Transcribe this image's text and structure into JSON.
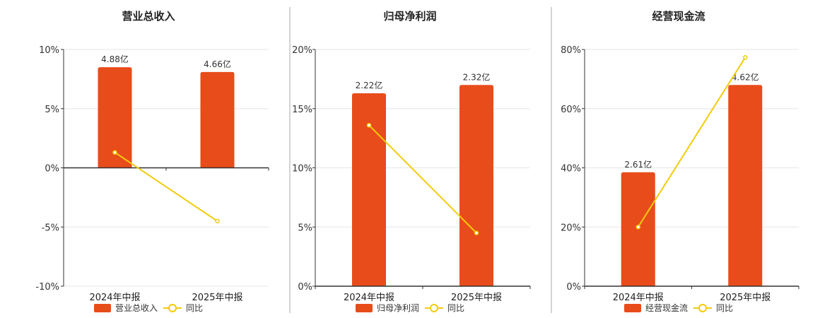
{
  "colors": {
    "bar": "#e84c1a",
    "line": "#f2cc0c",
    "grid": "#e6e6e6",
    "axis": "#333333",
    "divider": "#aaaaaa"
  },
  "chart_data": [
    {
      "type": "bar",
      "title": "营业总收入",
      "categories": [
        "2024年中报",
        "2025年中报"
      ],
      "series": [
        {
          "name": "营业总收入",
          "type": "bar",
          "values": [
            4.88,
            4.66
          ],
          "labels": [
            "4.88亿",
            "4.66亿"
          ]
        },
        {
          "name": "同比",
          "type": "line",
          "values": [
            1.3,
            -4.5
          ]
        }
      ],
      "ylim": [
        -10,
        10
      ],
      "yticks": [
        -10,
        -5,
        0,
        5,
        10
      ],
      "ytick_labels": [
        "-10%",
        "-5%",
        "0%",
        "5%",
        "10%"
      ],
      "bar_yoy_equiv": [
        8.5,
        8.1
      ],
      "grid": true,
      "legend": "bottom"
    },
    {
      "type": "bar",
      "title": "归母净利润",
      "categories": [
        "2024年中报",
        "2025年中报"
      ],
      "series": [
        {
          "name": "归母净利润",
          "type": "bar",
          "values": [
            2.22,
            2.32
          ],
          "labels": [
            "2.22亿",
            "2.32亿"
          ]
        },
        {
          "name": "同比",
          "type": "line",
          "values": [
            13.6,
            4.5
          ]
        }
      ],
      "ylim": [
        0,
        20
      ],
      "yticks": [
        0,
        5,
        10,
        15,
        20
      ],
      "ytick_labels": [
        "0%",
        "5%",
        "10%",
        "15%",
        "20%"
      ],
      "bar_yoy_equiv": [
        16.3,
        17.0
      ],
      "grid": true,
      "legend": "bottom"
    },
    {
      "type": "bar",
      "title": "经营现金流",
      "categories": [
        "2024年中报",
        "2025年中报"
      ],
      "series": [
        {
          "name": "经营现金流",
          "type": "bar",
          "values": [
            2.61,
            4.62
          ],
          "labels": [
            "2.61亿",
            "4.62亿"
          ]
        },
        {
          "name": "同比",
          "type": "line",
          "values": [
            20.0,
            77.3
          ]
        }
      ],
      "ylim": [
        0,
        80
      ],
      "yticks": [
        0,
        20,
        40,
        60,
        80
      ],
      "ytick_labels": [
        "0%",
        "20%",
        "40%",
        "60%",
        "80%"
      ],
      "bar_yoy_equiv": [
        38.5,
        68.0
      ],
      "grid": true,
      "legend": "bottom"
    }
  ]
}
